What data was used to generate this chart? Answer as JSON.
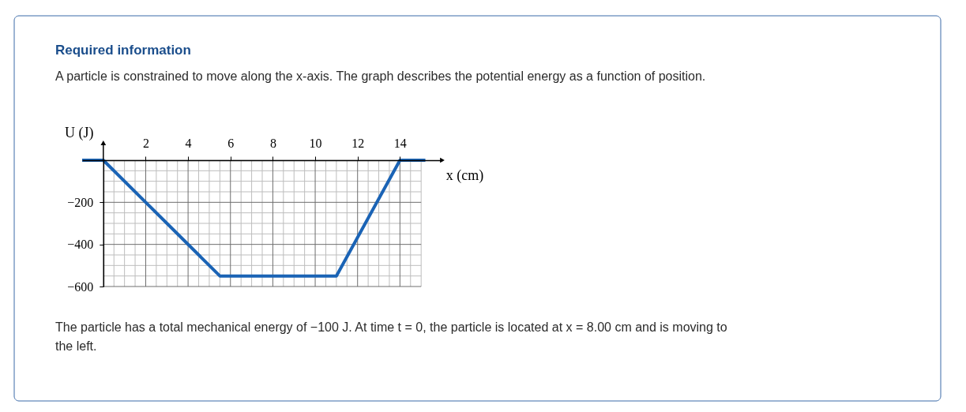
{
  "chart_data": {
    "type": "line",
    "title": "Required information",
    "subtitle": "A particle is constrained to move along the x-axis. The graph describes the potential energy as a function of position.",
    "xlabel": "x (cm)",
    "ylabel": "U (J)",
    "x": [
      -1,
      0,
      5.5,
      11,
      14,
      15.2
    ],
    "series": [
      {
        "color": "#1a63b5",
        "values": [
          0,
          0,
          -550,
          -550,
          0,
          0
        ]
      }
    ],
    "xlim": [
      -1,
      16
    ],
    "ylim": [
      -600,
      0
    ],
    "xticks": [
      {
        "value": 0,
        "label": null
      },
      {
        "value": 0.5,
        "label": null
      },
      {
        "value": 1,
        "label": null
      },
      {
        "value": 1.5,
        "label": null
      },
      2,
      {
        "value": 2.5,
        "label": null
      },
      {
        "value": 3,
        "label": null
      },
      {
        "value": 3.5,
        "label": null
      },
      4,
      {
        "value": 4.5,
        "label": null
      },
      {
        "value": 5,
        "label": null
      },
      {
        "value": 5.5,
        "label": null
      },
      6,
      {
        "value": 6.5,
        "label": null
      },
      {
        "value": 7,
        "label": null
      },
      {
        "value": 7.5,
        "label": null
      },
      8,
      {
        "value": 8.5,
        "label": null
      },
      {
        "value": 9,
        "label": null
      },
      {
        "value": 9.5,
        "label": null
      },
      10,
      {
        "value": 10.5,
        "label": null
      },
      {
        "value": 11,
        "label": null
      },
      {
        "value": 11.5,
        "label": null
      },
      12,
      {
        "value": 12.5,
        "label": null
      },
      {
        "value": 13,
        "label": null
      },
      {
        "value": 13.5,
        "label": null
      },
      14,
      {
        "value": 14.5,
        "label": null
      },
      {
        "value": 15,
        "label": null
      }
    ],
    "yticks": [
      -600,
      {
        "value": -550,
        "label": null
      },
      {
        "value": -500,
        "label": null
      },
      {
        "value": -450,
        "label": null
      },
      -400,
      {
        "value": -350,
        "label": null
      },
      {
        "value": -300,
        "label": null
      },
      {
        "value": -250,
        "label": null
      },
      -200,
      {
        "value": -150,
        "label": null
      },
      {
        "value": -100,
        "label": null
      },
      {
        "value": -50,
        "label": null
      },
      {
        "value": 0,
        "label": null
      }
    ],
    "grid": true,
    "annotations": [
      "The particle has a total mechanical energy of −100 J. At time t = 0, the particle is located at x = 8.00 cm and is moving to the left."
    ]
  }
}
